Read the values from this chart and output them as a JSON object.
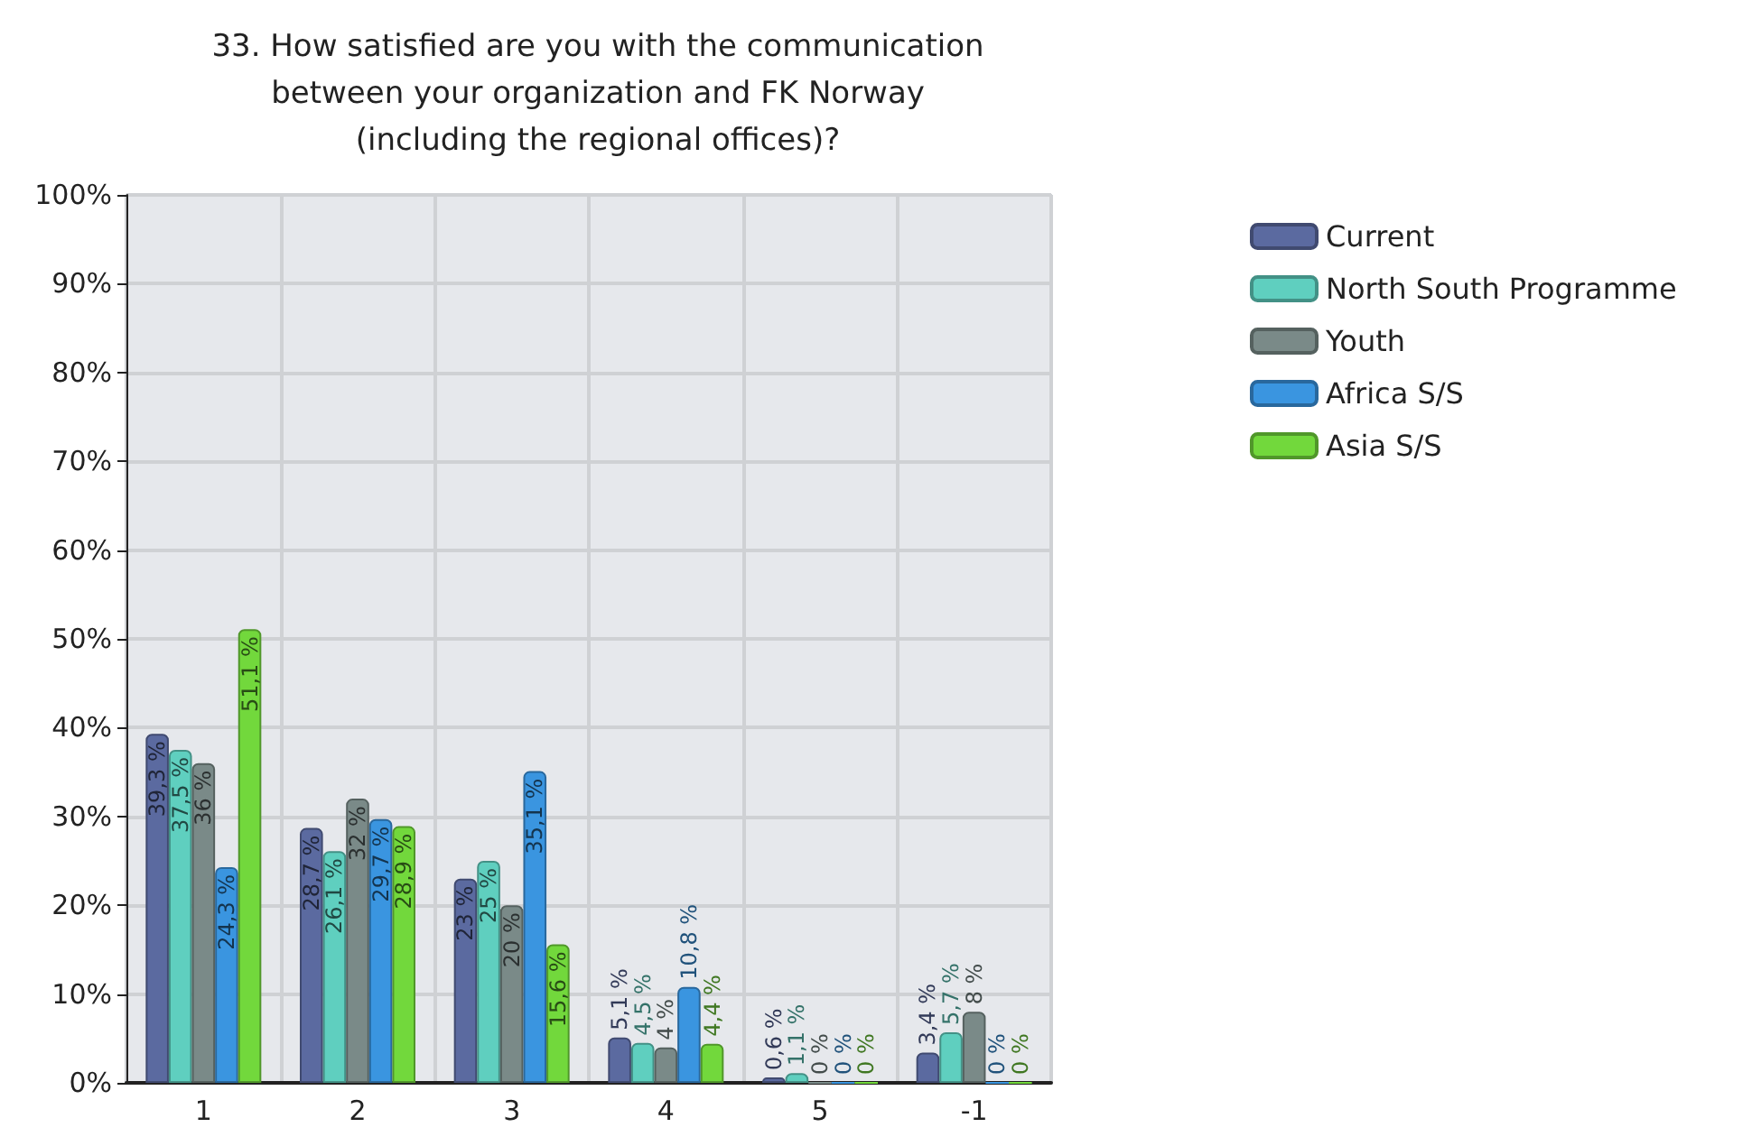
{
  "chart_data": {
    "type": "bar",
    "title": "33. How satisfied are you with the communication\nbetween your organization and FK Norway\n(including the regional offices)?",
    "categories": [
      "1",
      "2",
      "3",
      "4",
      "5",
      "-1"
    ],
    "series": [
      {
        "name": "Current",
        "color": "#5b6aa0",
        "values": [
          39.3,
          28.7,
          23,
          5.1,
          0.6,
          3.4
        ],
        "value_labels": [
          "39,3 %",
          "28,7 %",
          "23 %",
          "5,1 %",
          "0,6 %",
          "3,4 %"
        ]
      },
      {
        "name": "North South Programme",
        "color": "#5fcfbf",
        "values": [
          37.5,
          26.1,
          25,
          4.5,
          1.1,
          5.7
        ],
        "value_labels": [
          "37,5 %",
          "26,1 %",
          "25 %",
          "4,5 %",
          "1,1 %",
          "5,7 %"
        ]
      },
      {
        "name": "Youth",
        "color": "#7a8a88",
        "values": [
          36,
          32,
          20,
          4,
          0,
          8
        ],
        "value_labels": [
          "36 %",
          "32 %",
          "20 %",
          "4 %",
          "0 %",
          "8 %"
        ]
      },
      {
        "name": "Africa S/S",
        "color": "#3a95e0",
        "values": [
          24.3,
          29.7,
          35.1,
          10.8,
          0,
          0
        ],
        "value_labels": [
          "24,3 %",
          "29,7 %",
          "35,1 %",
          "10,8 %",
          "0 %",
          "0 %"
        ]
      },
      {
        "name": "Asia S/S",
        "color": "#72d83c",
        "values": [
          51.1,
          28.9,
          15.6,
          4.4,
          0,
          0
        ],
        "value_labels": [
          "51,1 %",
          "28,9 %",
          "15,6 %",
          "4,4 %",
          "0 %",
          "0 %"
        ]
      }
    ],
    "ylim": [
      0,
      100
    ],
    "yticks": [
      {
        "value": 0,
        "label": "0%"
      },
      {
        "value": 10,
        "label": "10%"
      },
      {
        "value": 20,
        "label": "20%"
      },
      {
        "value": 30,
        "label": "30%"
      },
      {
        "value": 40,
        "label": "40%"
      },
      {
        "value": 50,
        "label": "50%"
      },
      {
        "value": 60,
        "label": "60%"
      },
      {
        "value": 70,
        "label": "70%"
      },
      {
        "value": 80,
        "label": "80%"
      },
      {
        "value": 90,
        "label": "90%"
      },
      {
        "value": 100,
        "label": "100%"
      }
    ],
    "grid": true,
    "legend": "right"
  }
}
